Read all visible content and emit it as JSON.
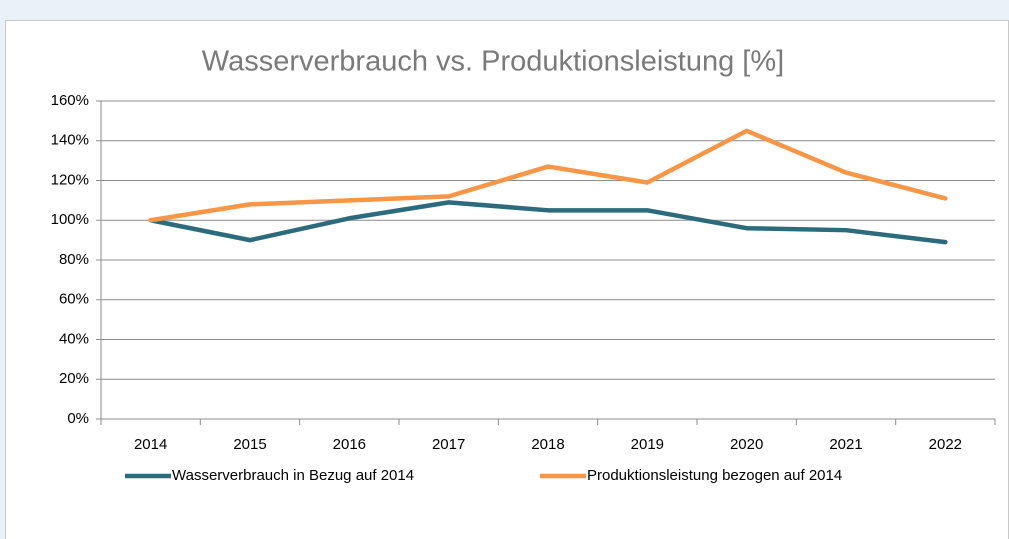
{
  "chart_data": {
    "type": "line",
    "title": "Wasserverbrauch vs. Produktionsleistung [%]",
    "categories": [
      "2014",
      "2015",
      "2016",
      "2017",
      "2018",
      "2019",
      "2020",
      "2021",
      "2022"
    ],
    "series": [
      {
        "name": "Wasserverbrauch in Bezug auf 2014",
        "color": "#2c6b7c",
        "values": [
          100,
          90,
          101,
          109,
          105,
          105,
          96,
          95,
          89
        ]
      },
      {
        "name": "Produktionsleistung bezogen auf 2014",
        "color": "#f79646",
        "values": [
          100,
          108,
          110,
          112,
          127,
          119,
          145,
          124,
          111
        ]
      }
    ],
    "ylim": [
      0,
      160
    ],
    "yticks": [
      {
        "value": 0,
        "label": "0%"
      },
      {
        "value": 20,
        "label": "20%"
      },
      {
        "value": 40,
        "label": "40%"
      },
      {
        "value": 60,
        "label": "60%"
      },
      {
        "value": 80,
        "label": "80%"
      },
      {
        "value": 100,
        "label": "100%"
      },
      {
        "value": 120,
        "label": "120%"
      },
      {
        "value": 140,
        "label": "140%"
      },
      {
        "value": 160,
        "label": "160%"
      }
    ],
    "grid": true,
    "legend": "bottom"
  }
}
